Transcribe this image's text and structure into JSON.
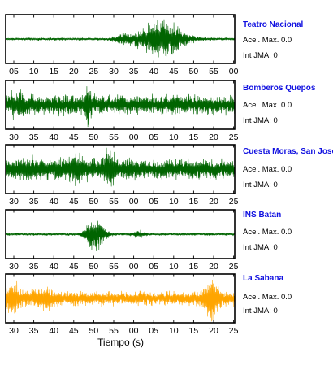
{
  "chart_data": {
    "type": "line",
    "xlabel": "Tiempo (s)",
    "acel_label": "Acel. Max.",
    "int_label": "Int JMA:",
    "panels": [
      {
        "name": "Teatro Nacional",
        "color": "#006400",
        "tick_labels": [
          "05",
          "10",
          "15",
          "20",
          "25",
          "30",
          "35",
          "40",
          "45",
          "50",
          "55",
          "00"
        ],
        "acel_max": "0.0",
        "int_jma": "0",
        "envelope": {
          "base": 0.05,
          "bursts": [
            {
              "at": 0.68,
              "width": 0.1,
              "amp": 1.0
            },
            {
              "at": 0.52,
              "width": 0.05,
              "amp": 0.2
            }
          ]
        }
      },
      {
        "name": "Bomberos Quepos",
        "color": "#006400",
        "tick_labels": [
          "30",
          "35",
          "40",
          "45",
          "50",
          "55",
          "00",
          "05",
          "10",
          "15",
          "20",
          "25"
        ],
        "acel_max": "0.0",
        "int_jma": "0",
        "envelope": {
          "base": 0.35,
          "bursts": [
            {
              "at": 0.36,
              "width": 0.012,
              "amp": 1.0
            },
            {
              "at": 0.06,
              "width": 0.05,
              "amp": 0.3
            }
          ]
        }
      },
      {
        "name": "Cuesta Moras, San Jose",
        "color": "#006400",
        "tick_labels": [
          "30",
          "35",
          "40",
          "45",
          "50",
          "55",
          "00",
          "05",
          "10",
          "15",
          "20",
          "25"
        ],
        "acel_max": "0.0",
        "int_jma": "0",
        "envelope": {
          "base": 0.35,
          "bursts": [
            {
              "at": 0.3,
              "width": 0.05,
              "amp": 0.5
            },
            {
              "at": 0.45,
              "width": 0.025,
              "amp": 0.8
            },
            {
              "at": 0.1,
              "width": 0.04,
              "amp": 0.3
            }
          ]
        }
      },
      {
        "name": "INS Batan",
        "color": "#006400",
        "tick_labels": [
          "30",
          "35",
          "40",
          "45",
          "50",
          "55",
          "00",
          "05",
          "10",
          "15",
          "20",
          "25"
        ],
        "acel_max": "0.0",
        "int_jma": "0",
        "envelope": {
          "base": 0.05,
          "bursts": [
            {
              "at": 0.39,
              "width": 0.04,
              "amp": 1.0
            },
            {
              "at": 0.58,
              "width": 0.03,
              "amp": 0.15
            }
          ]
        }
      },
      {
        "name": "La Sabana",
        "color": "#FFA500",
        "tick_labels": [
          "30",
          "35",
          "40",
          "45",
          "50",
          "55",
          "00",
          "05",
          "10",
          "15",
          "20",
          "25"
        ],
        "acel_max": "0.0",
        "int_jma": "0",
        "envelope": {
          "base": 0.25,
          "bursts": [
            {
              "at": 0.9,
              "width": 0.03,
              "amp": 1.0
            },
            {
              "at": 0.03,
              "width": 0.03,
              "amp": 0.7
            },
            {
              "at": 0.16,
              "width": 0.05,
              "amp": 0.35
            }
          ]
        }
      }
    ]
  }
}
